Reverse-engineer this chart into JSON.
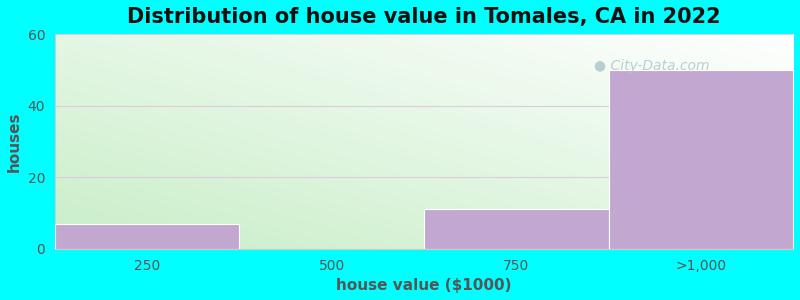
{
  "title": "Distribution of house value in Tomales, CA in 2022",
  "xlabel": "house value ($1000)",
  "ylabel": "houses",
  "bin_edges": [
    0,
    1,
    2,
    3,
    4
  ],
  "bin_labels": [
    "250",
    "500",
    "750",
    ">1,000"
  ],
  "values": [
    7,
    0,
    11,
    50
  ],
  "bar_color": "#c2a8d0",
  "bar_edgecolor": "#ffffff",
  "background_color": "#00ffff",
  "plot_bg_topleft": "#c8eec8",
  "plot_bg_bottomright": "#ffffff",
  "ylim": [
    0,
    60
  ],
  "yticks": [
    0,
    20,
    40,
    60
  ],
  "grid_color": "#ddccdd",
  "title_fontsize": 15,
  "label_fontsize": 11,
  "tick_fontsize": 10,
  "title_color": "#111111",
  "axis_label_color": "#555555",
  "tick_color": "#555555",
  "watermark_text": "City-Data.com",
  "watermark_color": "#aec8cc"
}
